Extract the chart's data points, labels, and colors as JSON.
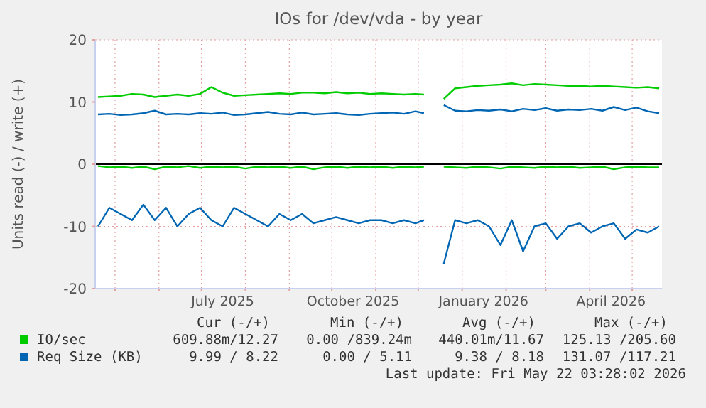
{
  "chart_data": {
    "type": "line",
    "title": "IOs for /dev/vda - by year",
    "ylabel": "Units read (-) / write (+)",
    "x": [
      "2025-04-19",
      "2025-04-27",
      "2025-05-05",
      "2025-05-13",
      "2025-05-21",
      "2025-05-29",
      "2025-06-06",
      "2025-06-14",
      "2025-06-22",
      "2025-06-30",
      "2025-07-08",
      "2025-07-16",
      "2025-07-24",
      "2025-08-01",
      "2025-08-09",
      "2025-08-17",
      "2025-08-25",
      "2025-09-02",
      "2025-09-10",
      "2025-09-18",
      "2025-09-26",
      "2025-10-04",
      "2025-10-12",
      "2025-10-20",
      "2025-10-28",
      "2025-11-05",
      "2025-11-13",
      "2025-11-21",
      "2025-11-29",
      "2025-12-05",
      "2025-12-12",
      "2025-12-19",
      "2025-12-27",
      "2026-01-04",
      "2026-01-12",
      "2026-01-20",
      "2026-01-28",
      "2026-02-05",
      "2026-02-13",
      "2026-02-21",
      "2026-03-01",
      "2026-03-09",
      "2026-03-17",
      "2026-03-25",
      "2026-04-02",
      "2026-04-10",
      "2026-04-18",
      "2026-04-26",
      "2026-05-04",
      "2026-05-12",
      "2026-05-20"
    ],
    "series": [
      {
        "name": "IO/sec",
        "color": "#00cc00",
        "values": [
          10.8,
          10.9,
          11,
          11.3,
          11.2,
          10.8,
          11,
          11.2,
          11,
          11.3,
          12.4,
          11.5,
          11,
          11.1,
          11.2,
          11.3,
          11.4,
          11.3,
          11.5,
          11.5,
          11.4,
          11.6,
          11.4,
          11.5,
          11.3,
          11.4,
          11.3,
          11.2,
          11.3,
          11.2,
          null,
          10.5,
          12.2,
          12.4,
          12.6,
          12.7,
          12.8,
          13,
          12.7,
          12.9,
          12.8,
          12.7,
          12.6,
          12.6,
          12.5,
          12.6,
          12.5,
          12.4,
          12.3,
          12.4,
          12.2
        ]
      },
      {
        "color": "#00cc00",
        "values": [
          -0.3,
          -0.5,
          -0.4,
          -0.6,
          -0.4,
          -0.8,
          -0.4,
          -0.5,
          -0.3,
          -0.6,
          -0.4,
          -0.5,
          -0.4,
          -0.7,
          -0.4,
          -0.5,
          -0.4,
          -0.6,
          -0.4,
          -0.8,
          -0.5,
          -0.4,
          -0.6,
          -0.4,
          -0.5,
          -0.4,
          -0.6,
          -0.4,
          -0.5,
          -0.4,
          null,
          -0.4,
          -0.5,
          -0.6,
          -0.4,
          -0.5,
          -0.7,
          -0.4,
          -0.5,
          -0.6,
          -0.4,
          -0.5,
          -0.4,
          -0.6,
          -0.5,
          -0.4,
          -0.8,
          -0.5,
          -0.4,
          -0.5,
          -0.5
        ]
      },
      {
        "name": "Req Size (KB)",
        "color": "#0066b3",
        "values": [
          8,
          8.1,
          7.9,
          8,
          8.2,
          8.6,
          8,
          8.1,
          8,
          8.2,
          8.1,
          8.3,
          7.9,
          8,
          8.2,
          8.4,
          8.1,
          8,
          8.3,
          8,
          8.1,
          8.2,
          8,
          7.9,
          8.1,
          8.2,
          8.3,
          8.1,
          8.5,
          8.2,
          null,
          9.5,
          8.6,
          8.5,
          8.7,
          8.6,
          8.8,
          8.5,
          8.9,
          8.7,
          9,
          8.6,
          8.8,
          8.7,
          8.9,
          8.6,
          9.2,
          8.7,
          9.1,
          8.5,
          8.2
        ]
      },
      {
        "color": "#0066b3",
        "values": [
          -10,
          -7,
          -8,
          -9,
          -6.5,
          -9,
          -7,
          -10,
          -8,
          -7,
          -9,
          -10,
          -7,
          -8,
          -9,
          -10,
          -8,
          -9,
          -8,
          -9.5,
          -9,
          -8.5,
          -9,
          -9.5,
          -9,
          -9,
          -9.5,
          -9,
          -9.5,
          -9,
          null,
          -16,
          -9,
          -9.5,
          -9,
          -10,
          -13,
          -9,
          -14,
          -10,
          -9.5,
          -12,
          -10,
          -9.5,
          -11,
          -10,
          -9.5,
          -12,
          -10.5,
          -11,
          -10
        ]
      }
    ],
    "xlim": [
      "2025-04-17",
      "2026-05-22"
    ],
    "xticks": [
      {
        "value": "2025-05-01",
        "label": null
      },
      {
        "value": "2025-06-01",
        "label": null
      },
      {
        "value": "2025-07-01",
        "label": null
      },
      {
        "value": "2025-07-16",
        "label": "July 2025"
      },
      {
        "value": "2025-08-01",
        "label": null
      },
      {
        "value": "2025-09-01",
        "label": null
      },
      {
        "value": "2025-10-01",
        "label": null
      },
      {
        "value": "2025-10-16",
        "label": "October 2025"
      },
      {
        "value": "2025-11-01",
        "label": null
      },
      {
        "value": "2025-12-01",
        "label": null
      },
      {
        "value": "2026-01-01",
        "label": null
      },
      {
        "value": "2026-01-16",
        "label": "January 2026"
      },
      {
        "value": "2026-02-01",
        "label": null
      },
      {
        "value": "2026-03-01",
        "label": null
      },
      {
        "value": "2026-04-01",
        "label": null
      },
      {
        "value": "2026-04-16",
        "label": "April 2026"
      },
      {
        "value": "2026-05-01",
        "label": null
      }
    ],
    "ylim": [
      -20,
      20
    ],
    "yticks": [
      -20,
      -10,
      0,
      10,
      20
    ],
    "grid": true,
    "legend": "bottom",
    "ref_lines": [
      {
        "axis": "y",
        "value": 0,
        "color": "#000000"
      }
    ],
    "annotations": [
      "Cur (-/+)",
      "Min (-/+)",
      "Avg (-/+)",
      "Max (-/+)",
      "609.88m/12.27",
      "0.00 /839.24m",
      "440.01m/11.67",
      "125.13 /205.60",
      "9.99 / 8.22",
      "0.00 / 5.11",
      "9.38 / 8.18",
      "131.07 /117.21",
      "Last update: Fri May 22 03:28:02 2026"
    ]
  }
}
